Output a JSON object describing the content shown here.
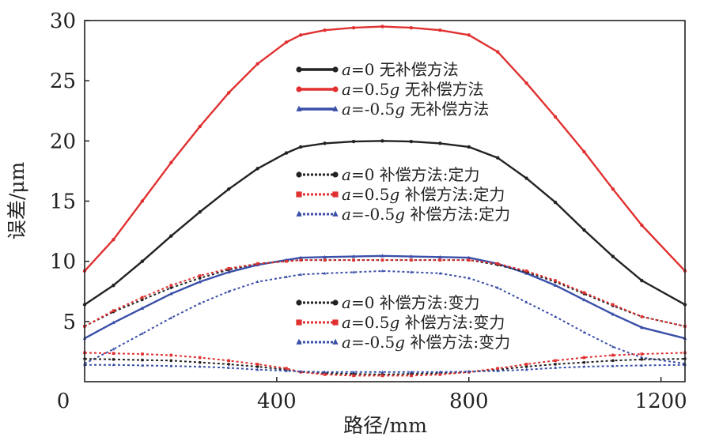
{
  "chart_data": {
    "type": "line",
    "xlabel": "路径/mm",
    "ylabel": "误差/μm",
    "xlim": [
      0,
      1250
    ],
    "ylim": [
      0,
      30
    ],
    "xticks": [
      "0",
      "400",
      "800",
      "1200"
    ],
    "yticks": [
      "5",
      "10",
      "15",
      "20",
      "25",
      "30"
    ],
    "grid": false,
    "legend_groups": [
      {
        "position": "upper-center",
        "entries": [
          {
            "prefix": "a",
            "text": "=0 无补偿方法"
          },
          {
            "prefix": "a",
            "text": "=0.5",
            "suffix": "g",
            "text2": " 无补偿方法"
          },
          {
            "prefix": "a",
            "text": "=-0.5",
            "suffix": "g",
            "text2": " 无补偿方法"
          }
        ]
      },
      {
        "position": "center",
        "entries": [
          {
            "prefix": "a",
            "text": "=0 补偿方法:定力"
          },
          {
            "prefix": "a",
            "text": "=0.5",
            "suffix": "g",
            "text2": " 补偿方法:定力"
          },
          {
            "prefix": "a",
            "text": "=-0.5",
            "suffix": "g",
            "text2": " 补偿方法:定力"
          }
        ]
      },
      {
        "position": "lower-center",
        "entries": [
          {
            "prefix": "a",
            "text": "=0 补偿方法:变力"
          },
          {
            "prefix": "a",
            "text": "=0.5",
            "suffix": "g",
            "text2": " 补偿方法:变力"
          },
          {
            "prefix": "a",
            "text": "=-0.5",
            "suffix": "g",
            "text2": " 补偿方法:变力"
          }
        ]
      }
    ],
    "series": [
      {
        "key": "s1",
        "color": "#222222",
        "style": "solid",
        "marker": "circle",
        "x": [
          0,
          60,
          120,
          180,
          240,
          300,
          360,
          420,
          450,
          500,
          560,
          620,
          680,
          740,
          800,
          860,
          920,
          980,
          1040,
          1100,
          1160,
          1250
        ],
        "y": [
          6.4,
          8.0,
          10.0,
          12.1,
          14.1,
          16.0,
          17.7,
          19.0,
          19.5,
          19.8,
          19.95,
          20.0,
          19.95,
          19.8,
          19.5,
          18.6,
          16.9,
          14.9,
          12.6,
          10.4,
          8.4,
          6.4
        ]
      },
      {
        "key": "s2",
        "color": "#e03030",
        "style": "solid",
        "marker": "circle",
        "x": [
          0,
          60,
          120,
          180,
          240,
          300,
          360,
          420,
          450,
          500,
          560,
          620,
          680,
          740,
          800,
          860,
          920,
          980,
          1040,
          1100,
          1160,
          1250
        ],
        "y": [
          9.2,
          11.8,
          15.0,
          18.2,
          21.2,
          24.0,
          26.4,
          28.2,
          28.8,
          29.2,
          29.4,
          29.5,
          29.4,
          29.2,
          28.8,
          27.4,
          24.8,
          22.0,
          19.1,
          16.0,
          13.0,
          9.2
        ]
      },
      {
        "key": "s3",
        "color": "#3a4fa8",
        "style": "solid",
        "marker": "triangle",
        "x": [
          0,
          60,
          120,
          180,
          240,
          300,
          360,
          420,
          450,
          500,
          560,
          620,
          680,
          740,
          800,
          860,
          920,
          980,
          1040,
          1100,
          1160,
          1250
        ],
        "y": [
          3.6,
          4.9,
          6.1,
          7.3,
          8.3,
          9.1,
          9.7,
          10.1,
          10.3,
          10.35,
          10.4,
          10.45,
          10.4,
          10.35,
          10.3,
          9.8,
          9.0,
          8.0,
          6.8,
          5.6,
          4.5,
          3.6
        ]
      },
      {
        "key": "s4",
        "color": "#222222",
        "style": "dotted",
        "marker": "circle",
        "x": [
          0,
          60,
          120,
          180,
          240,
          300,
          360,
          420,
          450,
          500,
          560,
          620,
          680,
          740,
          800,
          860,
          920,
          980,
          1040,
          1100,
          1160,
          1250
        ],
        "y": [
          4.6,
          5.8,
          6.8,
          7.8,
          8.6,
          9.3,
          9.8,
          10.0,
          10.1,
          10.1,
          10.1,
          10.1,
          10.1,
          10.1,
          10.1,
          9.7,
          9.1,
          8.3,
          7.3,
          6.3,
          5.4,
          4.6
        ]
      },
      {
        "key": "s5",
        "color": "#e03030",
        "style": "dotted",
        "marker": "square",
        "x": [
          0,
          60,
          120,
          180,
          240,
          300,
          360,
          420,
          450,
          500,
          560,
          620,
          680,
          740,
          800,
          860,
          920,
          980,
          1040,
          1100,
          1160,
          1250
        ],
        "y": [
          4.6,
          5.9,
          7.0,
          8.0,
          8.8,
          9.4,
          9.8,
          10.0,
          10.1,
          10.1,
          10.1,
          10.1,
          10.1,
          10.1,
          10.1,
          9.8,
          9.2,
          8.4,
          7.4,
          6.4,
          5.4,
          4.6
        ]
      },
      {
        "key": "s6",
        "color": "#3a4fa8",
        "style": "dotted",
        "marker": "triangle",
        "x": [
          0,
          60,
          120,
          180,
          240,
          300,
          360,
          420,
          450,
          500,
          560,
          620,
          680,
          740,
          800,
          860,
          920,
          980,
          1040,
          1100,
          1160,
          1250
        ],
        "y": [
          1.5,
          2.7,
          4.0,
          5.3,
          6.5,
          7.5,
          8.3,
          8.7,
          8.9,
          9.0,
          9.1,
          9.2,
          9.1,
          9.0,
          8.6,
          7.8,
          6.6,
          5.4,
          4.1,
          2.9,
          2.0,
          1.5
        ]
      },
      {
        "key": "s7",
        "color": "#222222",
        "style": "dotted",
        "marker": "circle",
        "x": [
          0,
          60,
          120,
          180,
          240,
          300,
          360,
          420,
          450,
          500,
          560,
          620,
          680,
          740,
          800,
          860,
          920,
          980,
          1040,
          1100,
          1160,
          1250
        ],
        "y": [
          1.9,
          1.85,
          1.8,
          1.75,
          1.6,
          1.45,
          1.25,
          1.0,
          0.8,
          0.7,
          0.65,
          0.6,
          0.65,
          0.7,
          0.8,
          1.0,
          1.25,
          1.45,
          1.6,
          1.75,
          1.85,
          1.9
        ]
      },
      {
        "key": "s8",
        "color": "#e03030",
        "style": "dotted",
        "marker": "square",
        "x": [
          0,
          60,
          120,
          180,
          240,
          300,
          360,
          420,
          450,
          500,
          560,
          620,
          680,
          740,
          800,
          860,
          920,
          980,
          1040,
          1100,
          1160,
          1250
        ],
        "y": [
          2.4,
          2.35,
          2.3,
          2.2,
          2.0,
          1.75,
          1.45,
          1.1,
          0.8,
          0.6,
          0.5,
          0.5,
          0.5,
          0.6,
          0.8,
          1.1,
          1.45,
          1.75,
          2.0,
          2.2,
          2.3,
          2.4
        ]
      },
      {
        "key": "s9",
        "color": "#3a4fa8",
        "style": "dotted",
        "marker": "triangle",
        "x": [
          0,
          60,
          120,
          180,
          240,
          300,
          360,
          420,
          450,
          500,
          560,
          620,
          680,
          740,
          800,
          860,
          920,
          980,
          1040,
          1100,
          1160,
          1250
        ],
        "y": [
          1.4,
          1.4,
          1.35,
          1.3,
          1.25,
          1.15,
          1.0,
          0.9,
          0.85,
          0.8,
          0.8,
          0.8,
          0.8,
          0.8,
          0.85,
          0.9,
          1.0,
          1.15,
          1.25,
          1.3,
          1.35,
          1.4
        ]
      }
    ]
  }
}
